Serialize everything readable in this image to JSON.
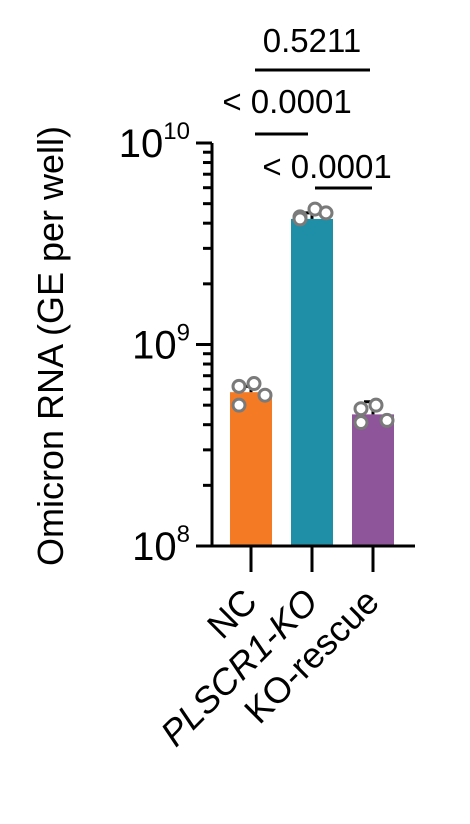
{
  "chart_data": {
    "type": "bar",
    "ylabel": "Omicron RNA (GE per well)",
    "y_scale": "log10",
    "ylim": [
      100000000,
      10000000000
    ],
    "y_ticks": [
      {
        "base": "10",
        "exp": "10",
        "value": 10000000000
      },
      {
        "base": "10",
        "exp": "9",
        "value": 1000000000
      },
      {
        "base": "10",
        "exp": "8",
        "value": 100000000
      }
    ],
    "categories": [
      {
        "label": "NC",
        "italic": false
      },
      {
        "label": "PLSCR1-KO",
        "italic": true
      },
      {
        "label": "KO-rescue",
        "italic": false
      }
    ],
    "values": [
      580000000,
      4200000000,
      450000000
    ],
    "error_upper": [
      620000000,
      4500000000,
      520000000
    ],
    "points": [
      [
        620000000,
        640000000,
        560000000,
        500000000
      ],
      [
        4300000000,
        4700000000,
        4500000000,
        4200000000
      ],
      [
        480000000,
        500000000,
        420000000,
        410000000
      ]
    ],
    "colors": [
      "#f47a24",
      "#1e8fa6",
      "#8f559a"
    ],
    "comparisons": [
      {
        "label": "0.5211",
        "from": 0,
        "to": 2
      },
      {
        "label": "< 0.0001",
        "from": 0,
        "to": 1
      },
      {
        "label": "< 0.0001",
        "from": 1,
        "to": 2
      }
    ]
  }
}
